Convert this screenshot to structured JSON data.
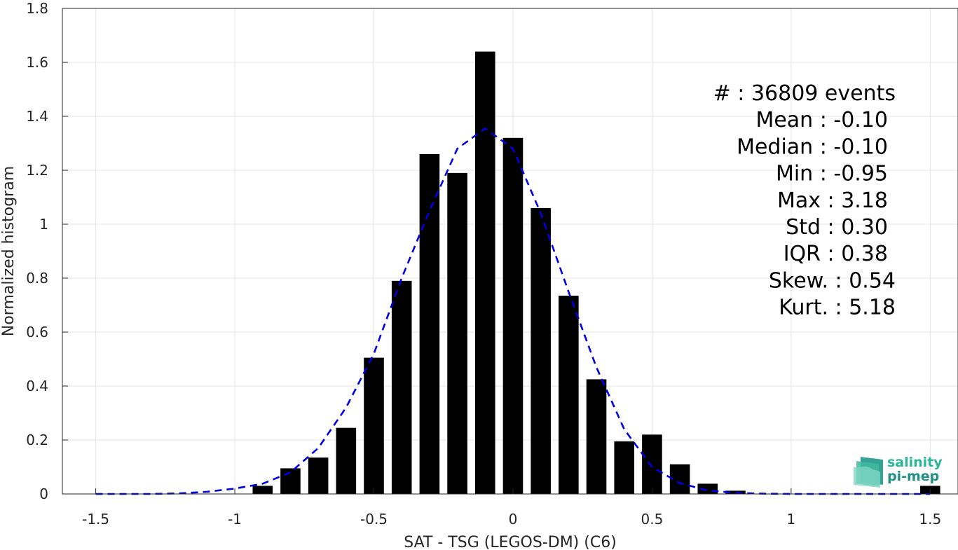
{
  "chart_data": {
    "type": "bar",
    "xlabel": "SAT - TSG (LEGOS-DM) (C6)",
    "ylabel": "Normalized histogram",
    "xlim": [
      -1.62,
      1.6
    ],
    "ylim": [
      0,
      1.8
    ],
    "xticks": [
      -1.5,
      -1,
      -0.5,
      0,
      0.5,
      1,
      1.5
    ],
    "xtick_labels": [
      "-1.5",
      "-1",
      "-0.5",
      "0",
      "0.5",
      "1",
      "1.5"
    ],
    "yticks": [
      0,
      0.2,
      0.4,
      0.6,
      0.8,
      1,
      1.2,
      1.4,
      1.6,
      1.8
    ],
    "ytick_labels": [
      "0",
      "0.2",
      "0.4",
      "0.6",
      "0.8",
      "1",
      "1.2",
      "1.4",
      "1.6",
      "1.8"
    ],
    "grid": true,
    "bar_color": "#000000",
    "bin_width": 0.1,
    "bars": {
      "x": [
        -0.9,
        -0.8,
        -0.7,
        -0.6,
        -0.5,
        -0.4,
        -0.3,
        -0.2,
        -0.1,
        0.0,
        0.1,
        0.2,
        0.3,
        0.4,
        0.5,
        0.6,
        0.7,
        0.8,
        1.5
      ],
      "values": [
        0.03,
        0.095,
        0.135,
        0.245,
        0.505,
        0.79,
        1.26,
        1.19,
        1.64,
        1.32,
        1.06,
        0.735,
        0.425,
        0.195,
        0.22,
        0.11,
        0.038,
        0.012,
        0.03
      ]
    },
    "fit_curve": {
      "style": "dashed",
      "color": "#0000e6",
      "x": [
        -1.5,
        -1.4,
        -1.3,
        -1.2,
        -1.1,
        -1.0,
        -0.9,
        -0.8,
        -0.7,
        -0.6,
        -0.5,
        -0.4,
        -0.3,
        -0.2,
        -0.1,
        0.0,
        0.1,
        0.2,
        0.3,
        0.4,
        0.5,
        0.6,
        0.7,
        0.8,
        0.9,
        1.0,
        1.1,
        1.2,
        1.3,
        1.4,
        1.5
      ],
      "y": [
        0.0,
        0.0,
        0.0,
        0.002,
        0.008,
        0.02,
        0.038,
        0.08,
        0.17,
        0.32,
        0.52,
        0.8,
        1.05,
        1.28,
        1.355,
        1.28,
        1.04,
        0.75,
        0.47,
        0.24,
        0.1,
        0.04,
        0.013,
        0.004,
        0.001,
        0.0,
        0.0,
        0.0,
        0.0,
        0.0,
        0.0
      ]
    },
    "annotations": [
      "#  : 36809 events",
      "Mean : -0.10",
      "Median : -0.10",
      "Min : -0.95",
      "Max : 3.18",
      "Std : 0.30",
      "IQR : 0.38",
      "Skew. : 0.54",
      "Kurt. : 5.18"
    ]
  },
  "logo": {
    "line1": "salinity",
    "line2": "pi-mep",
    "color1": "#2bb59a",
    "color2": "#1e8f86"
  }
}
